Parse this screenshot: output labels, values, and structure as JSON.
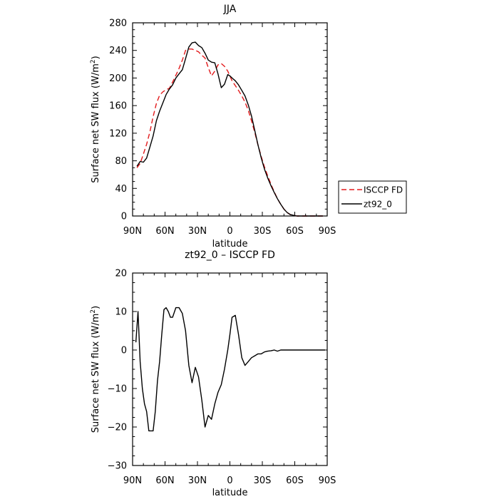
{
  "chart_data": [
    {
      "type": "line",
      "title": "JJA",
      "xlabel": "latitude",
      "ylabel_main": "Surface net SW flux (W/m",
      "ylabel_sup": "2",
      "ylabel_close": ")",
      "xlim": [
        90,
        -90
      ],
      "ylim": [
        0,
        280
      ],
      "x_ticks": [
        90,
        60,
        30,
        0,
        -30,
        -60,
        -90
      ],
      "x_tick_labels": [
        "90N",
        "60N",
        "30N",
        "0",
        "30S",
        "60S",
        "90S"
      ],
      "y_ticks": [
        0,
        40,
        80,
        120,
        160,
        200,
        240,
        280
      ],
      "y_tick_labels": [
        "0",
        "40",
        "80",
        "120",
        "160",
        "200",
        "240",
        "280"
      ],
      "legend": "outside-right",
      "series": [
        {
          "name": "ISCCP FD",
          "color": "#e31a1c",
          "dash": "dashed",
          "x": [
            86,
            83,
            80,
            77,
            74,
            71,
            68,
            65,
            62,
            59,
            56,
            53,
            50,
            47,
            44,
            41,
            38,
            35,
            32,
            29,
            26,
            23,
            20,
            17,
            14,
            11,
            8,
            5,
            2,
            0,
            -2,
            -5,
            -8,
            -11,
            -14,
            -17,
            -20,
            -23,
            -26,
            -29,
            -32,
            -35,
            -38,
            -41,
            -44,
            -47,
            -50,
            -53,
            -56,
            -59,
            -62,
            -65,
            -68,
            -71,
            -74,
            -77,
            -80,
            -83,
            -86
          ],
          "y": [
            70,
            76,
            90,
            104,
            122,
            144,
            163,
            175,
            180,
            183,
            185,
            194,
            204,
            214,
            226,
            240,
            242,
            242,
            240,
            238,
            233,
            229,
            215,
            203,
            210,
            219,
            221,
            217,
            210,
            203,
            196,
            189,
            182,
            174,
            165,
            153,
            138,
            121,
            103,
            86,
            71,
            58,
            46,
            35,
            25,
            17,
            10,
            5,
            2,
            1,
            0,
            0,
            0,
            0,
            0,
            0,
            0,
            0,
            0
          ]
        },
        {
          "name": "zt92_0",
          "color": "#000000",
          "dash": "solid",
          "x": [
            86,
            83,
            80,
            77,
            74,
            71,
            68,
            65,
            62,
            59,
            56,
            53,
            50,
            47,
            44,
            41,
            38,
            35,
            32,
            29,
            26,
            23,
            20,
            17,
            14,
            11,
            8,
            5,
            2,
            0,
            -2,
            -5,
            -8,
            -11,
            -14,
            -17,
            -20,
            -23,
            -26,
            -29,
            -32,
            -35,
            -38,
            -41,
            -44,
            -47,
            -50,
            -53,
            -56,
            -59,
            -62,
            -65,
            -68,
            -71,
            -74,
            -77,
            -80,
            -83,
            -86
          ],
          "y": [
            72,
            79,
            78,
            84,
            100,
            116,
            138,
            152,
            164,
            176,
            184,
            190,
            200,
            206,
            212,
            228,
            245,
            251,
            252,
            247,
            244,
            236,
            226,
            223,
            222,
            206,
            186,
            191,
            205,
            203,
            200,
            196,
            190,
            182,
            174,
            161,
            145,
            124,
            103,
            84,
            68,
            55,
            44,
            34,
            25,
            17,
            10,
            5,
            2,
            1,
            0,
            0,
            0,
            0,
            0,
            0,
            0,
            0,
            0
          ]
        }
      ]
    },
    {
      "type": "line",
      "title": "zt92_0 – ISCCP FD",
      "xlabel": "latitude",
      "ylabel_main": "Surface net SW flux (W/m",
      "ylabel_sup": "2",
      "ylabel_close": ")",
      "xlim": [
        90,
        -90
      ],
      "ylim": [
        -30,
        20
      ],
      "x_ticks": [
        90,
        60,
        30,
        0,
        -30,
        -60,
        -90
      ],
      "x_tick_labels": [
        "90N",
        "60N",
        "30N",
        "0",
        "30S",
        "60S",
        "90S"
      ],
      "y_ticks": [
        -30,
        -20,
        -10,
        0,
        10,
        20
      ],
      "y_tick_labels": [
        "−30",
        "−20",
        "−10",
        "0",
        "10",
        "20"
      ],
      "series": [
        {
          "color": "#000000",
          "dash": "solid",
          "x": [
            87,
            85,
            83,
            81,
            79,
            77,
            75,
            73,
            71,
            69,
            67,
            65,
            63,
            61,
            59,
            57,
            55,
            53,
            50,
            47,
            44,
            41,
            38,
            35,
            32,
            29,
            26,
            23,
            20,
            17,
            14,
            11,
            8,
            5,
            2,
            0,
            -2,
            -5,
            -8,
            -11,
            -14,
            -17,
            -20,
            -23,
            -26,
            -29,
            -32,
            -35,
            -38,
            -41,
            -44,
            -47,
            -50,
            -53,
            -56,
            -59,
            -62,
            -65,
            -68,
            -71,
            -74,
            -77,
            -80,
            -83,
            -86,
            -88
          ],
          "y": [
            2,
            10,
            -3,
            -10,
            -14,
            -16,
            -21,
            -21,
            -21,
            -16,
            -8,
            -3,
            4,
            10.5,
            11,
            10,
            8.5,
            8.5,
            11,
            11,
            9.5,
            5,
            -4,
            -8.5,
            -4.5,
            -7,
            -13,
            -20,
            -17,
            -18,
            -14,
            -11,
            -9,
            -5,
            0,
            4,
            8.5,
            9,
            4,
            -2,
            -4,
            -3,
            -2,
            -1.5,
            -1,
            -1,
            -0.5,
            -0.3,
            -0.2,
            0,
            -0.3,
            0,
            0,
            0,
            0,
            0,
            0,
            0,
            0,
            0,
            0,
            0,
            0,
            0,
            0,
            0
          ]
        }
      ]
    }
  ]
}
